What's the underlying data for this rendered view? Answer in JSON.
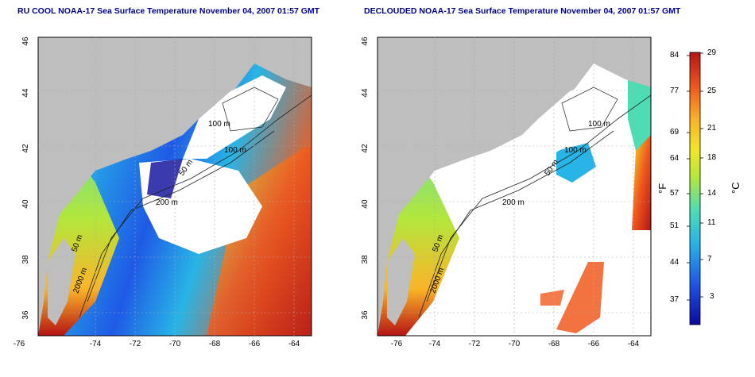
{
  "titles": {
    "left": "RU COOL NOAA-17 Sea Surface Temperature November 04, 2007 01:57 GMT",
    "right": "DECLOUDED NOAA-17 Sea Surface Temperature November 04, 2007 01:57 GMT"
  },
  "axes": {
    "lon_ticks": [
      "-76",
      "-74",
      "-72",
      "-70",
      "-68",
      "-66",
      "-64"
    ],
    "lat_ticks": [
      "46",
      "44",
      "42",
      "40",
      "38",
      "36"
    ]
  },
  "contour_labels_left": [
    "100 m",
    "100 m",
    "50 m",
    "200 m",
    "50 m",
    "2000 m"
  ],
  "contour_labels_right": [
    "100 m",
    "100 m",
    "50 m",
    "200 m",
    "50 m",
    "2000 m"
  ],
  "colorbar": {
    "fahrenheit_ticks": [
      "84",
      "77",
      "69",
      "64",
      "57",
      "51",
      "44",
      "37"
    ],
    "celsius_ticks": [
      "29",
      "25",
      "21",
      "18",
      "14",
      "11",
      "7",
      "3"
    ],
    "fahrenheit_unit": "°F",
    "celsius_unit": "°C"
  },
  "colors": {
    "land": "#bebebe",
    "cloud_mask": "#ffffff",
    "title": "#00008b",
    "scale": [
      "#0a0a9a",
      "#1e50e6",
      "#28b4e6",
      "#4ddcb4",
      "#b4e63c",
      "#f0e628",
      "#fab428",
      "#f05a1e",
      "#b41414"
    ]
  }
}
